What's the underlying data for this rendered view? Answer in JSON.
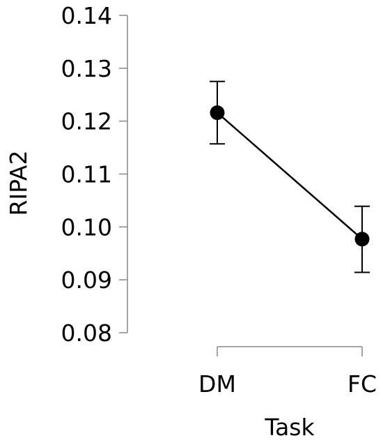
{
  "chart_data": {
    "type": "line",
    "title": "",
    "xlabel": "Task",
    "ylabel": "RIPA2",
    "categories": [
      "DM",
      "FC"
    ],
    "series": [
      {
        "values": [
          0.1216,
          0.0977
        ],
        "error_low": [
          0.1157,
          0.0914
        ],
        "error_high": [
          0.1275,
          0.1039
        ]
      }
    ],
    "ylim": [
      0.08,
      0.14
    ],
    "yticks": [
      "0.08",
      "0.09",
      "0.10",
      "0.11",
      "0.12",
      "0.13",
      "0.14"
    ],
    "grid": false,
    "legend": "none",
    "colors": {
      "line": "#000000",
      "marker": "#000000",
      "axis": "#888888"
    }
  }
}
